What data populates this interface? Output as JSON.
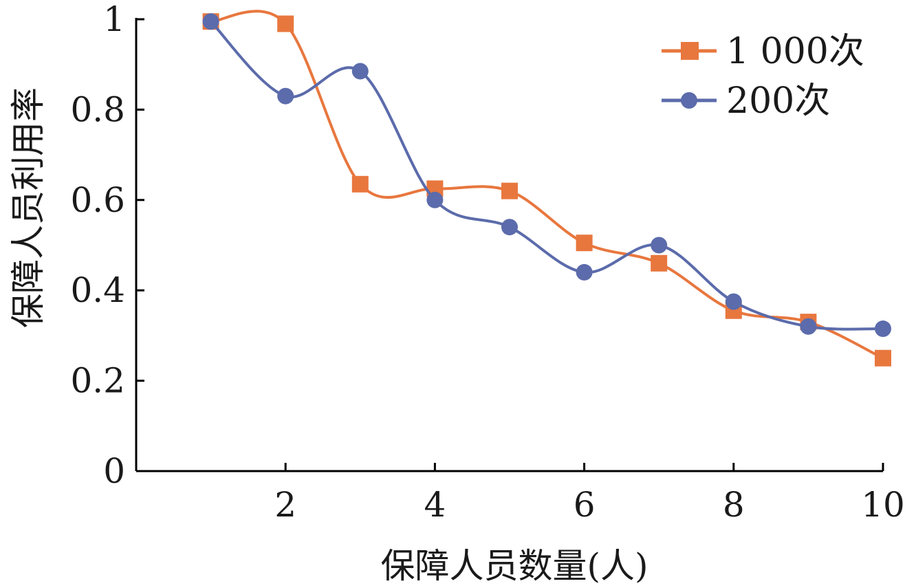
{
  "chart_data": {
    "type": "line",
    "title": "",
    "xlabel": "保障人员数量(人)",
    "ylabel": "保障人员利用率",
    "x": [
      1,
      2,
      3,
      4,
      5,
      6,
      7,
      8,
      9,
      10
    ],
    "xlim": [
      0,
      10
    ],
    "ylim": [
      0,
      1
    ],
    "x_ticks": [
      2,
      4,
      6,
      8,
      10
    ],
    "y_ticks": [
      0,
      0.2,
      0.4,
      0.6,
      0.8,
      1
    ],
    "x_tick_labels": [
      "2",
      "4",
      "6",
      "8",
      "10"
    ],
    "y_tick_labels": [
      "0",
      "0.2",
      "0.4",
      "0.6",
      "0.8",
      "1"
    ],
    "grid": false,
    "legend_position": "top-right",
    "series": [
      {
        "name": "1 000次",
        "marker": "square",
        "color": "#E8773E",
        "values": [
          0.995,
          0.99,
          0.635,
          0.625,
          0.62,
          0.505,
          0.46,
          0.355,
          0.33,
          0.25
        ]
      },
      {
        "name": "200次",
        "marker": "circle",
        "color": "#5B6BAB",
        "values": [
          0.995,
          0.83,
          0.885,
          0.6,
          0.54,
          0.44,
          0.5,
          0.375,
          0.32,
          0.315
        ]
      }
    ]
  }
}
